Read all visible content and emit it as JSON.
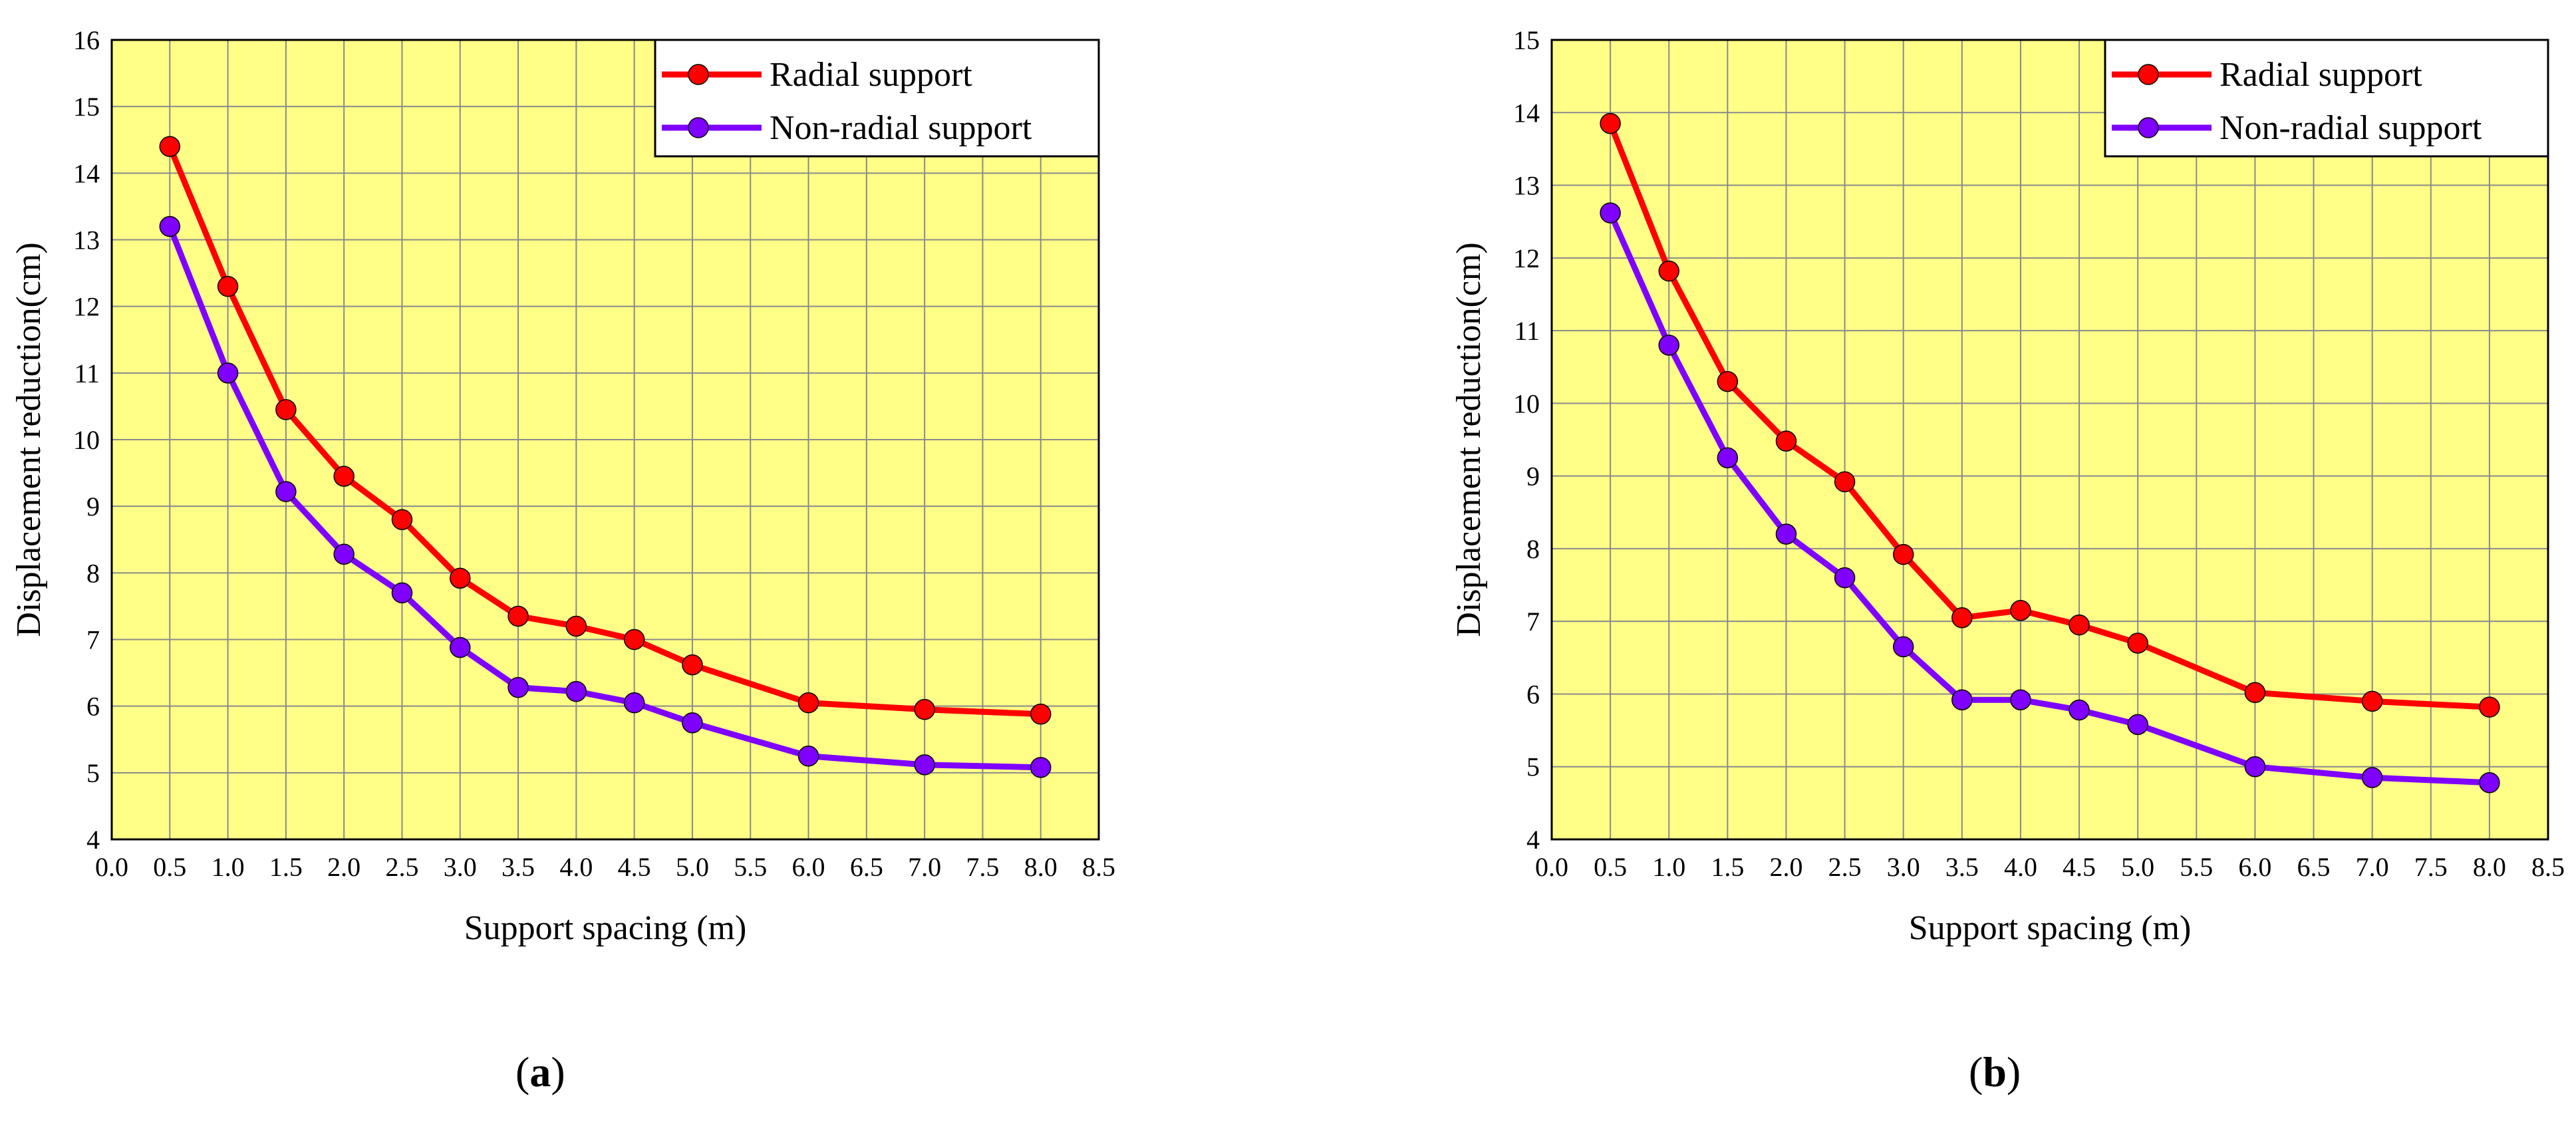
{
  "chart_data": [
    {
      "type": "line",
      "panel_label": "a",
      "xlabel": "Support spacing (m)",
      "ylabel": "Displacement reduction(cm)",
      "xlim": [
        0.0,
        8.5
      ],
      "ylim": [
        4,
        16
      ],
      "xticks": [
        "0.0",
        "0.5",
        "1.0",
        "1.5",
        "2.0",
        "2.5",
        "3.0",
        "3.5",
        "4.0",
        "4.5",
        "5.0",
        "5.5",
        "6.0",
        "6.5",
        "7.0",
        "7.5",
        "8.0",
        "8.5"
      ],
      "yticks": [
        "4",
        "5",
        "6",
        "7",
        "8",
        "9",
        "10",
        "11",
        "12",
        "13",
        "14",
        "15",
        "16"
      ],
      "grid": true,
      "legend_position": "top-right",
      "x": [
        0.5,
        1.0,
        1.5,
        2.0,
        2.5,
        3.0,
        3.5,
        4.0,
        4.5,
        5.0,
        6.0,
        7.0,
        8.0
      ],
      "series": [
        {
          "name": "Radial support",
          "color": "#ff0000",
          "values": [
            14.4,
            12.3,
            10.45,
            9.45,
            8.8,
            7.92,
            7.35,
            7.2,
            7.0,
            6.62,
            6.05,
            5.95,
            5.88
          ]
        },
        {
          "name": "Non-radial support",
          "color": "#8000ff",
          "values": [
            13.2,
            11.0,
            9.22,
            8.28,
            7.7,
            6.88,
            6.28,
            6.22,
            6.05,
            5.75,
            5.25,
            5.12,
            5.08
          ]
        }
      ]
    },
    {
      "type": "line",
      "panel_label": "b",
      "xlabel": "Support spacing (m)",
      "ylabel": "Displacement reduction(cm)",
      "xlim": [
        0.0,
        8.5
      ],
      "ylim": [
        4,
        15
      ],
      "xticks": [
        "0.0",
        "0.5",
        "1.0",
        "1.5",
        "2.0",
        "2.5",
        "3.0",
        "3.5",
        "4.0",
        "4.5",
        "5.0",
        "5.5",
        "6.0",
        "6.5",
        "7.0",
        "7.5",
        "8.0",
        "8.5"
      ],
      "yticks": [
        "4",
        "5",
        "6",
        "7",
        "8",
        "9",
        "10",
        "11",
        "12",
        "13",
        "14",
        "15"
      ],
      "grid": true,
      "legend_position": "top-right",
      "x": [
        0.5,
        1.0,
        1.5,
        2.0,
        2.5,
        3.0,
        3.5,
        4.0,
        4.5,
        5.0,
        6.0,
        7.0,
        8.0
      ],
      "series": [
        {
          "name": "Radial support",
          "color": "#ff0000",
          "values": [
            13.85,
            11.82,
            10.3,
            9.48,
            8.92,
            7.92,
            7.05,
            7.15,
            6.95,
            6.7,
            6.02,
            5.9,
            5.82
          ]
        },
        {
          "name": "Non-radial support",
          "color": "#8000ff",
          "values": [
            12.62,
            10.8,
            9.25,
            8.2,
            7.6,
            6.65,
            5.92,
            5.92,
            5.78,
            5.58,
            5.0,
            4.85,
            4.78
          ]
        }
      ]
    }
  ]
}
